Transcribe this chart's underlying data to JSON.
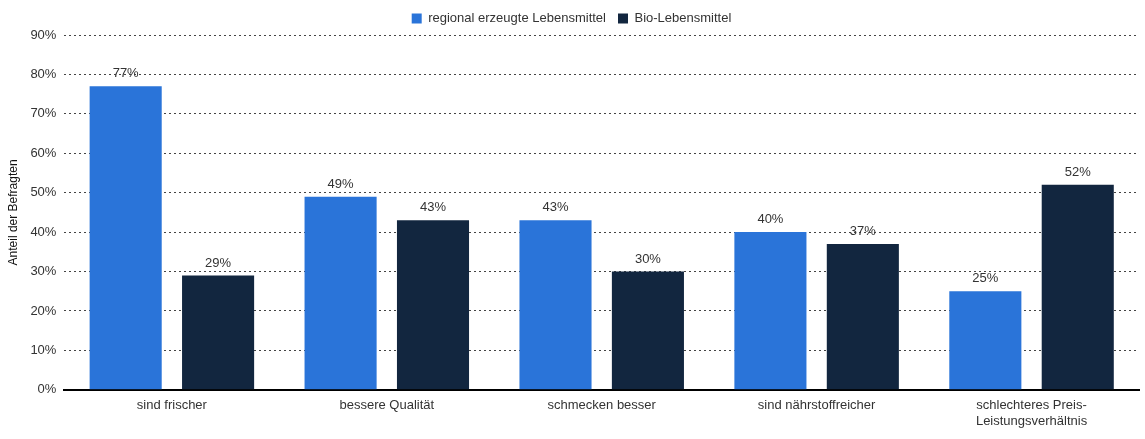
{
  "chart_data": {
    "type": "bar",
    "ylabel": "Anteil der Befragten",
    "categories": [
      "sind frischer",
      "bessere Qualität",
      "schmecken besser",
      "sind nährstoffreicher",
      "schlechteres Preis-Leistungsverhältnis"
    ],
    "series": [
      {
        "name": "regional erzeugte Lebensmittel",
        "color": "#2a74d9",
        "values": [
          77,
          49,
          43,
          40,
          25
        ],
        "value_labels": [
          "77%",
          "49%",
          "43%",
          "40%",
          "25%"
        ]
      },
      {
        "name": "Bio-Lebensmittel",
        "color": "#12263f",
        "values": [
          29,
          43,
          30,
          37,
          52
        ],
        "value_labels": [
          "29%",
          "43%",
          "30%",
          "37%",
          "52%"
        ]
      }
    ],
    "ylim": [
      0,
      90
    ],
    "yticks": [
      {
        "value": 0,
        "label": "0%"
      },
      {
        "value": 10,
        "label": "10%"
      },
      {
        "value": 20,
        "label": "20%"
      },
      {
        "value": 30,
        "label": "30%"
      },
      {
        "value": 40,
        "label": "40%"
      },
      {
        "value": 50,
        "label": "50%"
      },
      {
        "value": 60,
        "label": "60%"
      },
      {
        "value": 70,
        "label": "70%"
      },
      {
        "value": 80,
        "label": "80%"
      },
      {
        "value": 90,
        "label": "90%"
      }
    ],
    "grid": "y",
    "legend": "top"
  }
}
